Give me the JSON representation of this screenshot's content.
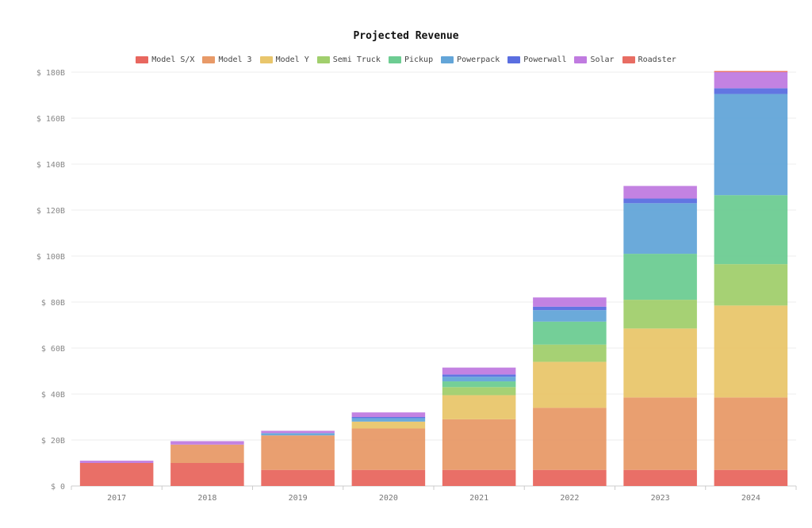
{
  "chart_data": {
    "type": "bar",
    "stacked": true,
    "title": "Projected Revenue",
    "categories": [
      "2017",
      "2018",
      "2019",
      "2020",
      "2021",
      "2022",
      "2023",
      "2024"
    ],
    "y_ticks": [
      "$ 0",
      "$ 20B",
      "$ 40B",
      "$ 60B",
      "$ 80B",
      "$ 100B",
      "$ 120B",
      "$ 140B",
      "$ 160B",
      "$ 180B"
    ],
    "ylim": [
      0,
      180
    ],
    "grid": true,
    "legend_position": "top",
    "series": [
      {
        "name": "Model S/X",
        "color": "#e8675f",
        "values": [
          10,
          10,
          7,
          7,
          7,
          7,
          7,
          7
        ]
      },
      {
        "name": "Model 3",
        "color": "#e89a68",
        "values": [
          0,
          8,
          15,
          18,
          22,
          27,
          31.5,
          31.5
        ]
      },
      {
        "name": "Model Y",
        "color": "#e9c66c",
        "values": [
          0,
          0,
          0,
          3,
          10.5,
          20,
          30,
          40
        ]
      },
      {
        "name": "Semi Truck",
        "color": "#a1cf6d",
        "values": [
          0,
          0,
          0,
          0,
          3.5,
          7.5,
          12.5,
          18
        ]
      },
      {
        "name": "Pickup",
        "color": "#6dcc92",
        "values": [
          0,
          0,
          0,
          0,
          2.5,
          10,
          20,
          30
        ]
      },
      {
        "name": "Powerpack",
        "color": "#63a5d8",
        "values": [
          0,
          0,
          1,
          1.5,
          2,
          5,
          22,
          44
        ]
      },
      {
        "name": "Powerwall",
        "color": "#5a6ee0",
        "values": [
          0,
          0,
          0,
          0.5,
          1,
          1.5,
          2,
          2.5
        ]
      },
      {
        "name": "Solar",
        "color": "#c07be0",
        "values": [
          1,
          1.5,
          1,
          2,
          3,
          4,
          5.5,
          7
        ]
      },
      {
        "name": "Roadster",
        "color": "#e86d63",
        "values": [
          0,
          0,
          0,
          0,
          0,
          0,
          0,
          0.5
        ]
      }
    ]
  }
}
